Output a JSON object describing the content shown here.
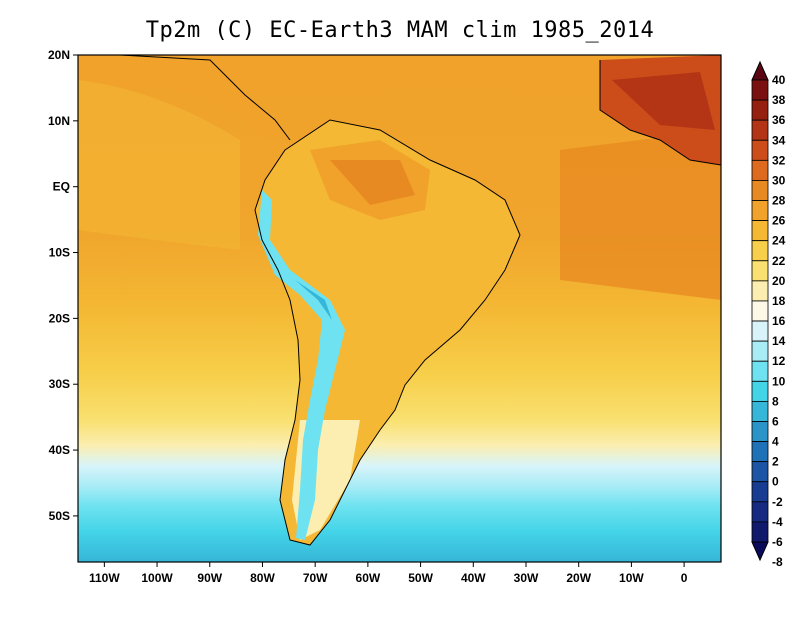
{
  "title": "Tp2m (C) EC-Earth3 MAM clim 1985_2014",
  "map": {
    "variable": "Tp2m",
    "units": "C",
    "region": "South America and adjacent Atlantic/Pacific",
    "lon_range": [
      -115,
      7
    ],
    "lat_range": [
      -57,
      20
    ],
    "lat_ticks": [
      {
        "value": 20,
        "label": "20N"
      },
      {
        "value": 10,
        "label": "10N"
      },
      {
        "value": 0,
        "label": "EQ"
      },
      {
        "value": -10,
        "label": "10S"
      },
      {
        "value": -20,
        "label": "20S"
      },
      {
        "value": -30,
        "label": "30S"
      },
      {
        "value": -40,
        "label": "40S"
      },
      {
        "value": -50,
        "label": "50S"
      }
    ],
    "lon_ticks": [
      {
        "value": -110,
        "label": "110W"
      },
      {
        "value": -100,
        "label": "100W"
      },
      {
        "value": -90,
        "label": "90W"
      },
      {
        "value": -80,
        "label": "80W"
      },
      {
        "value": -70,
        "label": "70W"
      },
      {
        "value": -60,
        "label": "60W"
      },
      {
        "value": -50,
        "label": "50W"
      },
      {
        "value": -40,
        "label": "40W"
      },
      {
        "value": -30,
        "label": "30W"
      },
      {
        "value": -20,
        "label": "20W"
      },
      {
        "value": -10,
        "label": "10W"
      },
      {
        "value": 0,
        "label": "0"
      }
    ]
  },
  "colorbar": {
    "levels": [
      "40",
      "38",
      "36",
      "34",
      "32",
      "30",
      "28",
      "26",
      "24",
      "22",
      "20",
      "18",
      "16",
      "14",
      "12",
      "10",
      "8",
      "6",
      "4",
      "2",
      "0",
      "-2",
      "-4",
      "-6",
      "-8"
    ],
    "colors": [
      "#5a0612",
      "#7a1010",
      "#962010",
      "#b33515",
      "#cc4c1a",
      "#dd6a1e",
      "#e88a22",
      "#f0a22a",
      "#f4b834",
      "#f7cf4a",
      "#f9e070",
      "#fbeeb0",
      "#fdf8e8",
      "#d8f4fa",
      "#a8ecf6",
      "#6ee2f0",
      "#44d4e8",
      "#36b6d8",
      "#2a94c8",
      "#2072b8",
      "#1c55a6",
      "#183c92",
      "#152a80",
      "#11196c",
      "#0a0a5a"
    ]
  },
  "chart_data": {
    "type": "heatmap",
    "title": "Tp2m (C) EC-Earth3 MAM clim 1985_2014",
    "xlabel": "",
    "ylabel": "",
    "x_range": [
      -115,
      7
    ],
    "y_range": [
      -57,
      20
    ],
    "value_range": [
      -8,
      40
    ],
    "colorbar_levels": [
      40,
      38,
      36,
      34,
      32,
      30,
      28,
      26,
      24,
      22,
      20,
      18,
      16,
      14,
      12,
      10,
      8,
      6,
      4,
      2,
      0,
      -2,
      -4,
      -6,
      -8
    ],
    "regions": [
      {
        "name": "tropical Atlantic / Amazon",
        "approx_value": 28
      },
      {
        "name": "West Africa (Sahel)",
        "approx_value": 34
      },
      {
        "name": "subtropical ocean 20S",
        "approx_value": 24
      },
      {
        "name": "mid-latitude ocean 40S",
        "approx_value": 18
      },
      {
        "name": "southern ocean 50S",
        "approx_value": 8
      },
      {
        "name": "Andes crest",
        "approx_value": 6
      }
    ]
  }
}
